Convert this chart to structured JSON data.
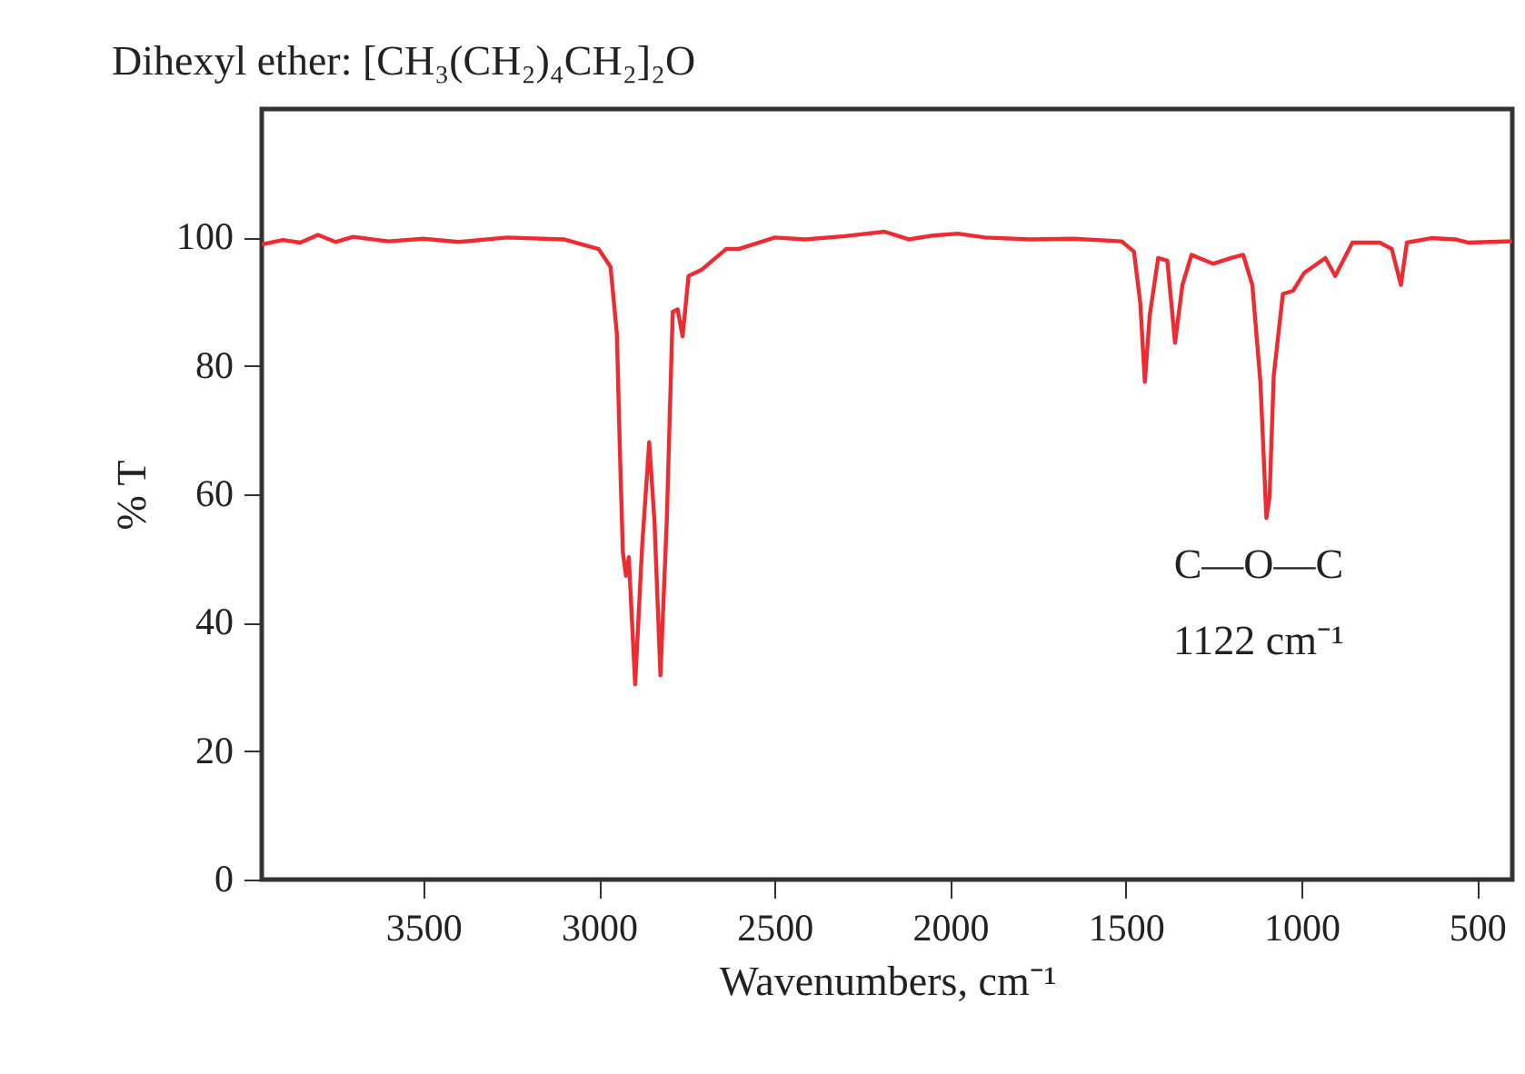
{
  "chart_data": {
    "type": "line",
    "title": "Dihexyl ether: [CH₃(CH₂)₄CH₂]₂O",
    "xlabel": "Wavenumbers, cm⁻¹",
    "ylabel": "% T",
    "xlim": [
      3960,
      400
    ],
    "xticks": [
      3500,
      3000,
      2500,
      2000,
      1500,
      1000,
      500
    ],
    "ylim": [
      0,
      120
    ],
    "yticks": [
      0,
      20,
      40,
      60,
      80,
      100
    ],
    "grid": false,
    "marker": "none",
    "line_style": "solid",
    "annotations": [
      {
        "text": "C—O—C\n1122 cm⁻¹",
        "x": 1122,
        "y": 56
      }
    ],
    "series": [
      {
        "color": "#ee2b30",
        "x": [
          3960,
          3900,
          3850,
          3800,
          3750,
          3700,
          3600,
          3500,
          3400,
          3261,
          3100,
          3001,
          2967,
          2949,
          2941,
          2932,
          2923,
          2915,
          2897,
          2877,
          2857,
          2842,
          2825,
          2807,
          2790,
          2776,
          2762,
          2745,
          2707,
          2638,
          2603,
          2499,
          2413,
          2300,
          2187,
          2118,
          2050,
          1979,
          1900,
          1772,
          1650,
          1512,
          1477,
          1459,
          1446,
          1432,
          1408,
          1382,
          1360,
          1339,
          1313,
          1252,
          1200,
          1166,
          1140,
          1117,
          1100,
          1091,
          1079,
          1053,
          1024,
          992,
          932,
          904,
          855,
          777,
          743,
          717,
          700,
          631,
          562,
          527,
          400
        ],
        "values": [
          98.9,
          99.6,
          99.2,
          100.4,
          99.3,
          100.1,
          99.4,
          99.8,
          99.3,
          100,
          99.7,
          98.2,
          95.4,
          85,
          68,
          51,
          47.3,
          50.2,
          30.4,
          52,
          68.1,
          55.8,
          31.8,
          55.8,
          88.4,
          88.8,
          84.6,
          94,
          95,
          98.2,
          98.2,
          100,
          99.7,
          100.2,
          100.9,
          99.7,
          100.3,
          100.6,
          100,
          99.7,
          99.8,
          99.4,
          97.8,
          89.8,
          77.5,
          87.9,
          96.8,
          96.4,
          83.6,
          92.6,
          97.3,
          95.9,
          96.8,
          97.3,
          92.6,
          77.5,
          56.3,
          59.6,
          78.5,
          91.2,
          91.7,
          94.5,
          96.8,
          94,
          99.2,
          99.2,
          98.2,
          92.6,
          99.2,
          99.9,
          99.7,
          99.2,
          99.4
        ]
      }
    ]
  }
}
